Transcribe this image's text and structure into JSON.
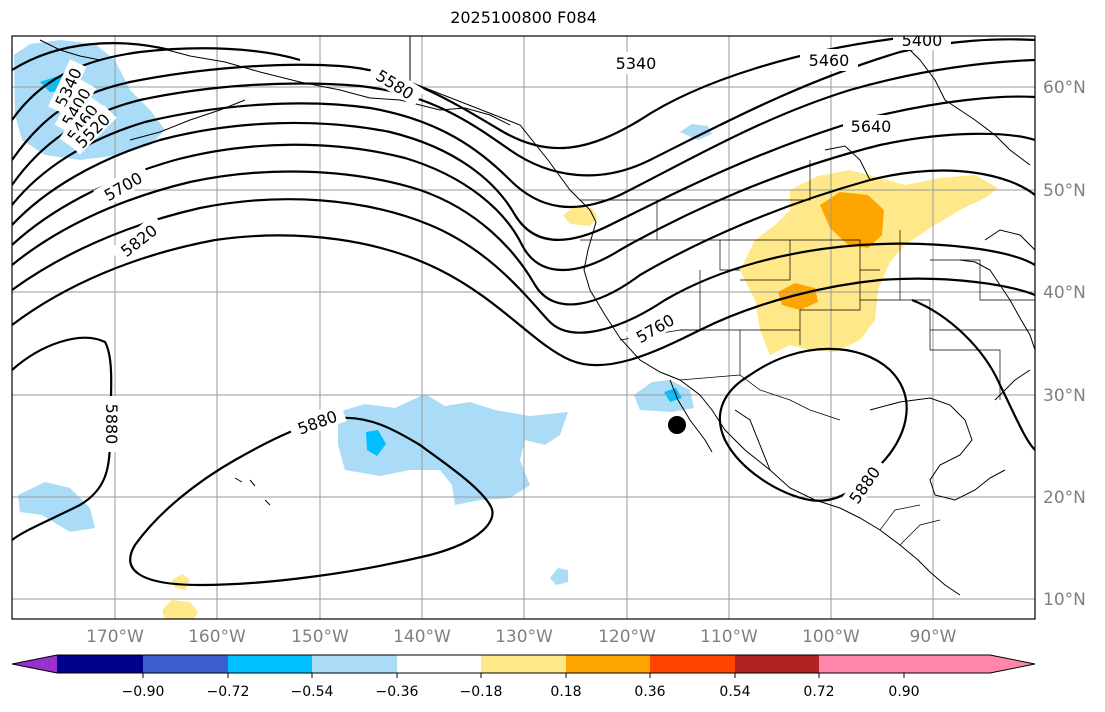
{
  "title": "2025100800 F084",
  "longitude_labels": [
    "170°W",
    "160°W",
    "150°W",
    "140°W",
    "130°W",
    "120°W",
    "110°W",
    "100°W",
    "90°W"
  ],
  "latitude_labels": [
    "60°N",
    "50°N",
    "40°N",
    "30°N",
    "20°N",
    "10°N"
  ],
  "colorbar": {
    "ticks": [
      "−0.90",
      "−0.72",
      "−0.54",
      "−0.36",
      "−0.18",
      "0.18",
      "0.36",
      "0.54",
      "0.72",
      "0.90"
    ],
    "colors": [
      "#9932cc",
      "#00008b",
      "#3a5fcd",
      "#00bfff",
      "#aadcf8",
      "#ffffff",
      "#ffe88a",
      "#ffa500",
      "#ff4500",
      "#b22222",
      "#ff88aa"
    ]
  },
  "contour_labels": {
    "c5340a": "5340",
    "c5400a": "5400",
    "c5460a": "5460",
    "c5520": "5520",
    "c5580": "5580",
    "c5700": "5700",
    "c5820": "5820",
    "c5880a": "5880",
    "c5880b": "5880",
    "c5880c": "5880",
    "c5340b": "5340",
    "c5460b": "5460",
    "c5400b": "5400",
    "c5640": "5640",
    "c5760": "5760"
  },
  "fill_colors": {
    "light_blue": "#aadcf8",
    "blue": "#00bfff",
    "yellow": "#ffe88a",
    "orange": "#ffa500"
  }
}
